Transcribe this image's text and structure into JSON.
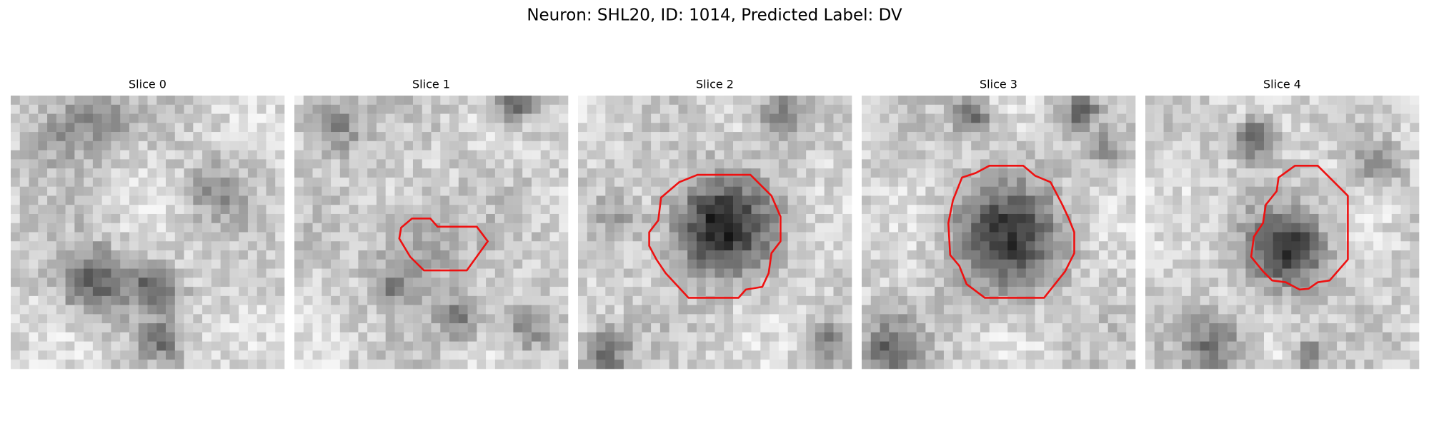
{
  "figure": {
    "title": "Neuron: SHL20, ID: 1014, Predicted Label: DV",
    "panels": [
      {
        "title": "Slice 0"
      },
      {
        "title": "Slice 1"
      },
      {
        "title": "Slice 2"
      },
      {
        "title": "Slice 3"
      },
      {
        "title": "Slice 4"
      }
    ]
  }
}
